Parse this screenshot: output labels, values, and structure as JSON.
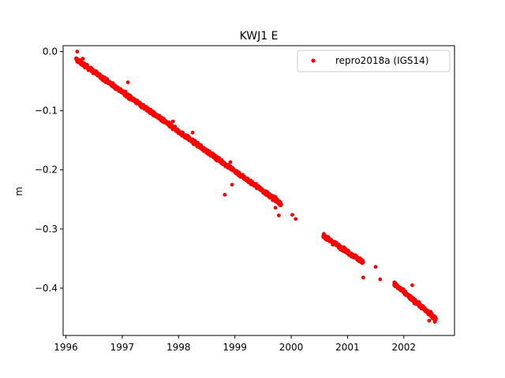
{
  "chart_data": {
    "type": "scatter",
    "title": "KWJ1 E",
    "xlabel": "",
    "ylabel": "m",
    "xlim": [
      1995.95,
      2002.9
    ],
    "ylim": [
      -0.48,
      0.01
    ],
    "xticks": [
      1996,
      1997,
      1998,
      1999,
      2000,
      2001,
      2002
    ],
    "yticks": [
      0.0,
      -0.1,
      -0.2,
      -0.3,
      -0.4
    ],
    "ytick_labels": [
      "0.0",
      "−0.1",
      "−0.2",
      "−0.3",
      "−0.4"
    ],
    "grid": false,
    "legend_position": "top-right",
    "series": [
      {
        "name": "repro2018a (IGS14)",
        "color": "#ff0000",
        "marker": "circle",
        "trend_segments": [
          {
            "x_start": 1996.18,
            "x_end": 1999.82,
            "y_start": -0.013,
            "y_end": -0.257
          },
          {
            "x_start": 2000.57,
            "x_end": 2001.28,
            "y_start": -0.312,
            "y_end": -0.356
          },
          {
            "x_start": 2001.83,
            "x_end": 2002.57,
            "y_start": -0.393,
            "y_end": -0.452
          }
        ],
        "points": [
          {
            "x": 1996.2,
            "y": 0.0
          },
          {
            "x": 1996.3,
            "y": -0.012
          },
          {
            "x": 1997.1,
            "y": -0.052
          },
          {
            "x": 1997.9,
            "y": -0.118
          },
          {
            "x": 1998.25,
            "y": -0.137
          },
          {
            "x": 1998.92,
            "y": -0.187
          },
          {
            "x": 1998.82,
            "y": -0.242
          },
          {
            "x": 1998.95,
            "y": -0.225
          },
          {
            "x": 1999.78,
            "y": -0.277
          },
          {
            "x": 1999.72,
            "y": -0.264
          },
          {
            "x": 2000.02,
            "y": -0.276
          },
          {
            "x": 2000.08,
            "y": -0.283
          },
          {
            "x": 2001.28,
            "y": -0.382
          },
          {
            "x": 2001.5,
            "y": -0.364
          },
          {
            "x": 2001.58,
            "y": -0.385
          },
          {
            "x": 2002.15,
            "y": -0.395
          },
          {
            "x": 2002.55,
            "y": -0.457
          },
          {
            "x": 2002.45,
            "y": -0.455
          }
        ]
      }
    ]
  }
}
